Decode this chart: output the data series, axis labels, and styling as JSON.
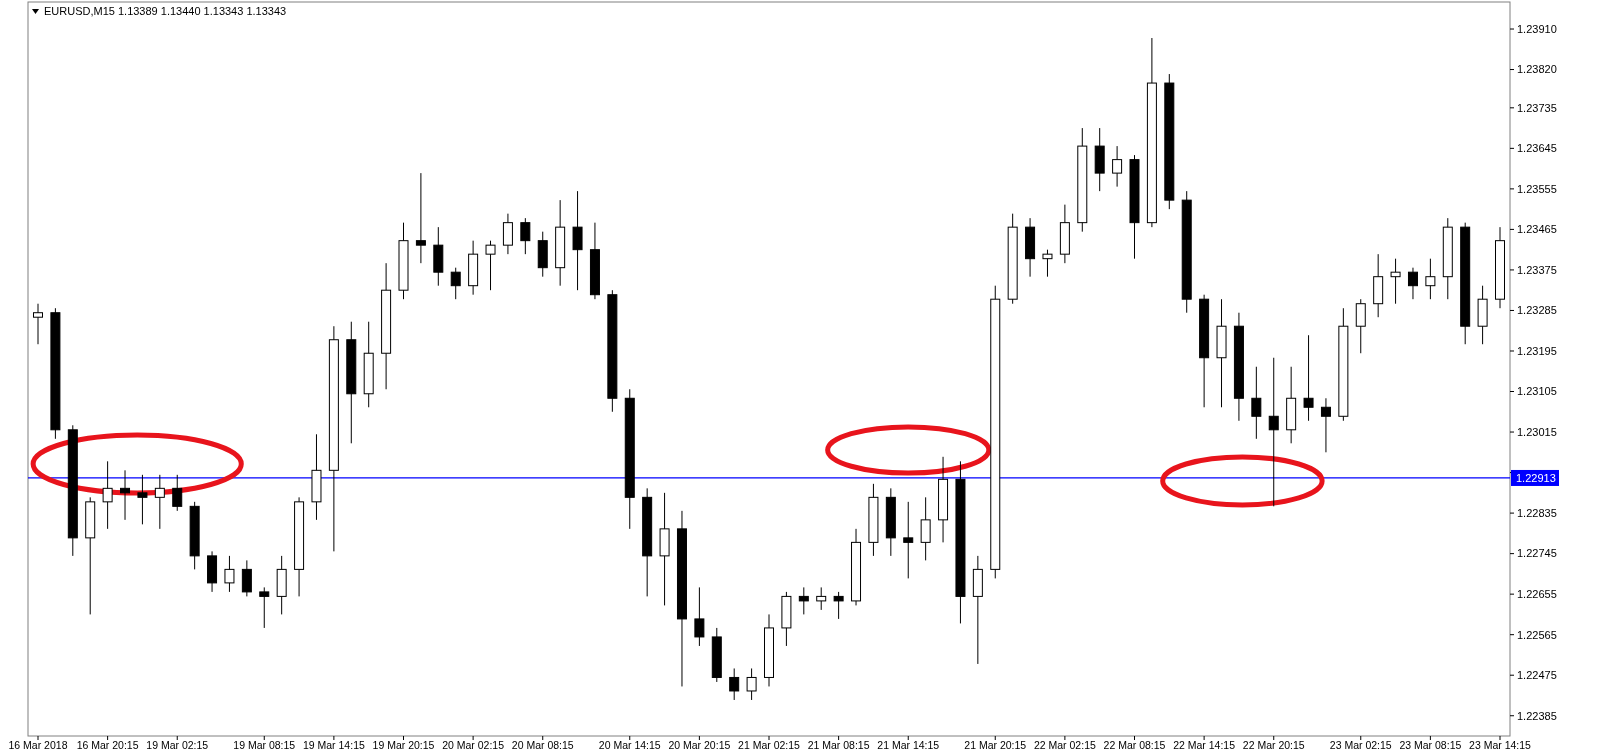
{
  "chart_data": {
    "type": "candlestick",
    "title": "EURUSD,M15  1.13389 1.13440 1.13343 1.13343",
    "color": "#000000",
    "categories": [
      "16 Mar 2018",
      null,
      null,
      null,
      "16 Mar 20:15",
      null,
      null,
      null,
      "19 Mar 02:15",
      null,
      null,
      null,
      null,
      "19 Mar 08:15",
      null,
      null,
      null,
      "19 Mar 14:15",
      null,
      null,
      null,
      "19 Mar 20:15",
      null,
      null,
      null,
      "20 Mar 02:15",
      null,
      null,
      null,
      "20 Mar 08:15",
      null,
      null,
      null,
      null,
      "20 Mar 14:15",
      null,
      null,
      null,
      "20 Mar 20:15",
      null,
      null,
      null,
      "21 Mar 02:15",
      null,
      null,
      null,
      "21 Mar 08:15",
      null,
      null,
      null,
      "21 Mar 14:15",
      null,
      null,
      null,
      null,
      "21 Mar 20:15",
      null,
      null,
      null,
      "22 Mar 02:15",
      null,
      null,
      null,
      "22 Mar 08:15",
      null,
      null,
      null,
      "22 Mar 14:15",
      null,
      null,
      null,
      "22 Mar 20:15",
      null,
      null,
      null,
      null,
      "23 Mar 02:15",
      null,
      null,
      null,
      "23 Mar 08:15",
      null,
      null,
      null,
      "23 Mar 14:15"
    ],
    "ohlc": [
      [
        1.2327,
        1.233,
        1.2321,
        1.2328
      ],
      [
        1.2328,
        1.2329,
        1.23,
        1.2302
      ],
      [
        1.2302,
        1.2303,
        1.2274,
        1.2278
      ],
      [
        1.2278,
        1.2287,
        1.2261,
        1.2286
      ],
      [
        1.2286,
        1.2295,
        1.228,
        1.2289
      ],
      [
        1.2289,
        1.2293,
        1.2282,
        1.2288
      ],
      [
        1.2288,
        1.2292,
        1.2281,
        1.2287
      ],
      [
        1.2287,
        1.2292,
        1.228,
        1.2289
      ],
      [
        1.2289,
        1.2292,
        1.2284,
        1.2285
      ],
      [
        1.2285,
        1.2286,
        1.2271,
        1.2274
      ],
      [
        1.2274,
        1.2275,
        1.2266,
        1.2268
      ],
      [
        1.2268,
        1.2274,
        1.2266,
        1.2271
      ],
      [
        1.2271,
        1.2273,
        1.2265,
        1.2266
      ],
      [
        1.2266,
        1.2267,
        1.2258,
        1.2265
      ],
      [
        1.2265,
        1.2274,
        1.2261,
        1.2271
      ],
      [
        1.2271,
        1.2287,
        1.2265,
        1.2286
      ],
      [
        1.2286,
        1.2301,
        1.2282,
        1.2293
      ],
      [
        1.2293,
        1.2325,
        1.2275,
        1.2322
      ],
      [
        1.2322,
        1.2326,
        1.2299,
        1.231
      ],
      [
        1.231,
        1.2326,
        1.2307,
        1.2319
      ],
      [
        1.2319,
        1.2339,
        1.2311,
        1.2333
      ],
      [
        1.2333,
        1.2348,
        1.2331,
        1.2344
      ],
      [
        1.2344,
        1.2359,
        1.2339,
        1.2343
      ],
      [
        1.2343,
        1.2347,
        1.2334,
        1.2337
      ],
      [
        1.2337,
        1.2338,
        1.2331,
        1.2334
      ],
      [
        1.2334,
        1.2344,
        1.2332,
        1.2341
      ],
      [
        1.2341,
        1.2344,
        1.2333,
        1.2343
      ],
      [
        1.2343,
        1.235,
        1.2341,
        1.2348
      ],
      [
        1.2348,
        1.2349,
        1.2341,
        1.2344
      ],
      [
        1.2344,
        1.2346,
        1.2336,
        1.2338
      ],
      [
        1.2338,
        1.2353,
        1.2334,
        1.2347
      ],
      [
        1.2347,
        1.2355,
        1.2333,
        1.2342
      ],
      [
        1.2342,
        1.2348,
        1.2331,
        1.2332
      ],
      [
        1.2332,
        1.2333,
        1.2306,
        1.2309
      ],
      [
        1.2309,
        1.2311,
        1.228,
        1.2287
      ],
      [
        1.2287,
        1.2289,
        1.2265,
        1.2274
      ],
      [
        1.2274,
        1.2288,
        1.2263,
        1.228
      ],
      [
        1.228,
        1.2284,
        1.2245,
        1.226
      ],
      [
        1.226,
        1.2267,
        1.2254,
        1.2256
      ],
      [
        1.2256,
        1.2258,
        1.2246,
        1.2247
      ],
      [
        1.2247,
        1.2249,
        1.2242,
        1.2244
      ],
      [
        1.2244,
        1.2249,
        1.2242,
        1.2247
      ],
      [
        1.2247,
        1.2261,
        1.2245,
        1.2258
      ],
      [
        1.2258,
        1.2266,
        1.2254,
        1.2265
      ],
      [
        1.2265,
        1.2267,
        1.2261,
        1.2264
      ],
      [
        1.2264,
        1.2267,
        1.2262,
        1.2265
      ],
      [
        1.2265,
        1.2266,
        1.226,
        1.2264
      ],
      [
        1.2264,
        1.228,
        1.2263,
        1.2277
      ],
      [
        1.2277,
        1.229,
        1.2274,
        1.2287
      ],
      [
        1.2287,
        1.2289,
        1.2274,
        1.2278
      ],
      [
        1.2278,
        1.2286,
        1.2269,
        1.2277
      ],
      [
        1.2277,
        1.2287,
        1.2273,
        1.2282
      ],
      [
        1.2282,
        1.2296,
        1.2277,
        1.2291
      ],
      [
        1.2291,
        1.2295,
        1.2259,
        1.2265
      ],
      [
        1.2265,
        1.2274,
        1.225,
        1.2271
      ],
      [
        1.2271,
        1.2334,
        1.2269,
        1.2331
      ],
      [
        1.2331,
        1.235,
        1.233,
        1.2347
      ],
      [
        1.2347,
        1.2349,
        1.2336,
        1.234
      ],
      [
        1.234,
        1.2342,
        1.2336,
        1.2341
      ],
      [
        1.2341,
        1.2352,
        1.2339,
        1.2348
      ],
      [
        1.2348,
        1.2369,
        1.2346,
        1.2365
      ],
      [
        1.2365,
        1.2369,
        1.2355,
        1.2359
      ],
      [
        1.2359,
        1.2365,
        1.2356,
        1.2362
      ],
      [
        1.2362,
        1.2363,
        1.234,
        1.2348
      ],
      [
        1.2348,
        1.2389,
        1.2347,
        1.2379
      ],
      [
        1.2379,
        1.2381,
        1.2351,
        1.2353
      ],
      [
        1.2353,
        1.2355,
        1.2328,
        1.2331
      ],
      [
        1.2331,
        1.2332,
        1.2307,
        1.2318
      ],
      [
        1.2318,
        1.2331,
        1.2307,
        1.2325
      ],
      [
        1.2325,
        1.2328,
        1.2304,
        1.2309
      ],
      [
        1.2309,
        1.2316,
        1.23,
        1.2305
      ],
      [
        1.2305,
        1.2318,
        1.2285,
        1.2302
      ],
      [
        1.2302,
        1.2316,
        1.2299,
        1.2309
      ],
      [
        1.2309,
        1.2323,
        1.2304,
        1.2307
      ],
      [
        1.2307,
        1.2309,
        1.2297,
        1.2305
      ],
      [
        1.2305,
        1.2329,
        1.2304,
        1.2325
      ],
      [
        1.2325,
        1.2331,
        1.2319,
        1.233
      ],
      [
        1.233,
        1.2341,
        1.2327,
        1.2336
      ],
      [
        1.2336,
        1.234,
        1.233,
        1.2337
      ],
      [
        1.2337,
        1.2338,
        1.2331,
        1.2334
      ],
      [
        1.2334,
        1.234,
        1.2331,
        1.2336
      ],
      [
        1.2336,
        1.2349,
        1.2331,
        1.2347
      ],
      [
        1.2347,
        1.2348,
        1.2321,
        1.2325
      ],
      [
        1.2325,
        1.2334,
        1.2321,
        1.2331
      ],
      [
        1.2331,
        1.2347,
        1.2329,
        1.2344
      ]
    ],
    "ylim": [
      1.2234,
      1.2397
    ],
    "yticks": [
      1.22385,
      1.22475,
      1.22565,
      1.22655,
      1.22745,
      1.22835,
      {
        "value": 1.22925,
        "label": null
      },
      1.23015,
      1.23105,
      1.23195,
      1.23285,
      1.23375,
      1.23465,
      1.23555,
      1.23645,
      1.23735,
      {
        "value": 1.2382,
        "label": "1.23820"
      },
      {
        "value": 1.2391,
        "label": "1.23910"
      }
    ],
    "ref_lines": [
      {
        "axis": "y",
        "value": 1.22913,
        "label": "1.22913",
        "color": "#0000ff"
      }
    ]
  }
}
